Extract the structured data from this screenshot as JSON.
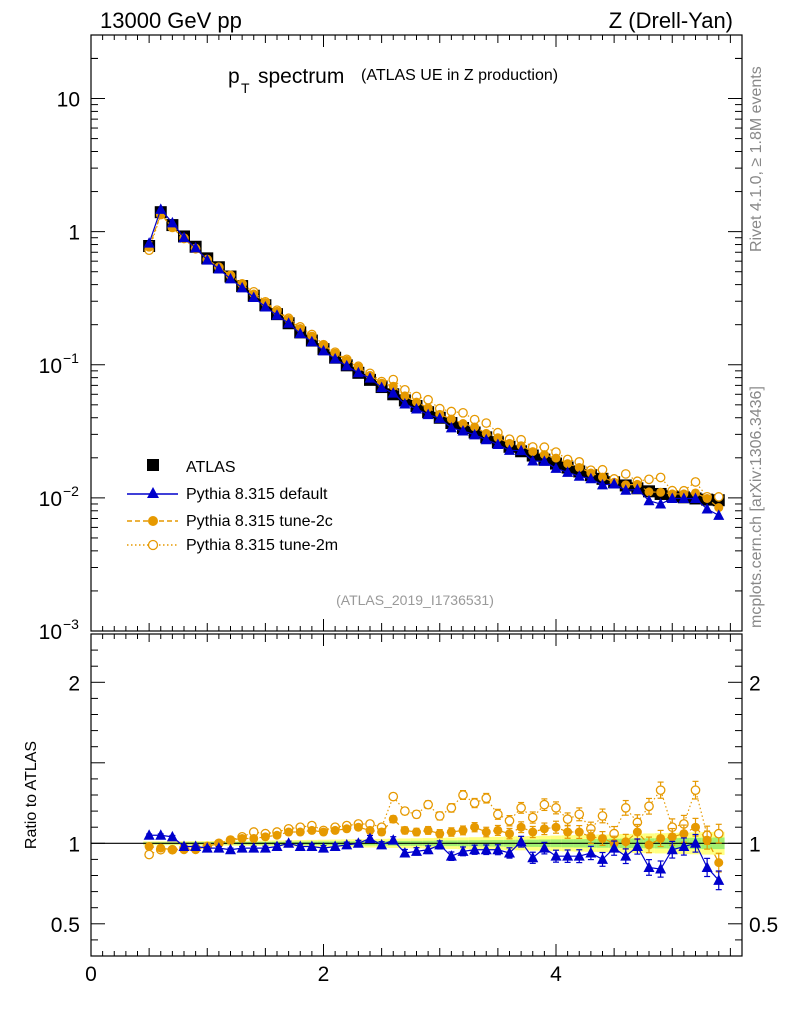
{
  "header": {
    "left": "13000 GeV pp",
    "right": "Z (Drell-Yan)"
  },
  "side_text": {
    "rivet": "Rivet 4.1.0, ≥ 1.8M events",
    "mcplots": "mcplots.cern.ch [arXiv:1306.3436]"
  },
  "chart_data": {
    "type": "scatter",
    "title_main": "p",
    "title_sub": "T",
    "title_word": "spectrum",
    "title_paren": "(ATLAS UE in Z production)",
    "analysis_id": "(ATLAS_2019_I1736531)",
    "xlim": [
      0,
      5.6
    ],
    "ylim": [
      0.001,
      30
    ],
    "yscale": "log",
    "ratio_ylabel": "Ratio to ATLAS",
    "ratio_ylim": [
      0.3,
      2.3
    ],
    "x_ticks": [
      "0",
      "2",
      "4"
    ],
    "y_ticks_main": [
      {
        "value": 10,
        "base": "10",
        "exp": ""
      },
      {
        "value": 1,
        "base": "1",
        "exp": ""
      },
      {
        "value": 0.1,
        "base": "10",
        "exp": "−1"
      },
      {
        "value": 0.01,
        "base": "10",
        "exp": "−2"
      },
      {
        "value": 0.001,
        "base": "10",
        "exp": "−3"
      }
    ],
    "y_ticks_ratio": [
      {
        "value": 2,
        "label": "2"
      },
      {
        "value": 1,
        "label": "1"
      },
      {
        "value": 0.5,
        "label": "0.5"
      }
    ],
    "legend": [
      {
        "name": "ATLAS",
        "color": "#000000",
        "marker": "square"
      },
      {
        "name": "Pythia 8.315 default",
        "color": "#0000cc",
        "marker": "triangle"
      },
      {
        "name": "Pythia 8.315 tune-2c",
        "color": "#e69900",
        "marker": "circle"
      },
      {
        "name": "Pythia 8.315 tune-2m",
        "color": "#e69900",
        "marker": "open-circle"
      }
    ],
    "x": [
      0.5,
      0.6,
      0.7,
      0.8,
      0.9,
      1.0,
      1.1,
      1.2,
      1.3,
      1.4,
      1.5,
      1.6,
      1.7,
      1.8,
      1.9,
      2.0,
      2.1,
      2.2,
      2.3,
      2.4,
      2.5,
      2.6,
      2.7,
      2.8,
      2.9,
      3.0,
      3.1,
      3.2,
      3.3,
      3.4,
      3.5,
      3.6,
      3.7,
      3.8,
      3.9,
      4.0,
      4.1,
      4.2,
      4.3,
      4.4,
      4.5,
      4.6,
      4.7,
      4.8,
      4.9,
      5.0,
      5.1,
      5.2,
      5.3,
      5.4
    ],
    "atlas": [
      0.78,
      1.4,
      1.12,
      0.92,
      0.77,
      0.63,
      0.54,
      0.46,
      0.39,
      0.33,
      0.28,
      0.24,
      0.205,
      0.175,
      0.152,
      0.131,
      0.113,
      0.099,
      0.087,
      0.077,
      0.068,
      0.06,
      0.054,
      0.049,
      0.044,
      0.04,
      0.0365,
      0.0335,
      0.031,
      0.0285,
      0.0262,
      0.0242,
      0.0224,
      0.0208,
      0.0194,
      0.0181,
      0.0169,
      0.0158,
      0.0148,
      0.0139,
      0.0131,
      0.0124,
      0.0118,
      0.0112,
      0.0107,
      0.0103,
      0.0101,
      0.0099,
      0.0097,
      0.0096
    ],
    "ratio_default": [
      1.05,
      1.05,
      1.04,
      0.98,
      0.98,
      0.97,
      0.97,
      0.96,
      0.97,
      0.97,
      0.97,
      0.98,
      1.0,
      0.98,
      0.98,
      0.97,
      0.98,
      0.99,
      1.0,
      1.03,
      0.99,
      1.02,
      0.94,
      0.95,
      0.96,
      0.99,
      0.92,
      0.95,
      0.96,
      0.96,
      0.96,
      0.94,
      1.01,
      0.91,
      0.97,
      0.92,
      0.92,
      0.92,
      0.94,
      0.9,
      0.97,
      0.92,
      0.98,
      0.85,
      0.84,
      0.96,
      0.98,
      1.0,
      0.85,
      0.77
    ],
    "ratio_tune2c": [
      0.98,
      0.97,
      0.96,
      0.96,
      0.96,
      0.98,
      1.0,
      1.02,
      1.03,
      1.03,
      1.04,
      1.05,
      1.07,
      1.07,
      1.08,
      1.07,
      1.08,
      1.09,
      1.1,
      1.08,
      1.07,
      1.15,
      1.08,
      1.07,
      1.08,
      1.06,
      1.07,
      1.08,
      1.1,
      1.07,
      1.08,
      1.06,
      1.1,
      1.07,
      1.09,
      1.1,
      1.07,
      1.07,
      1.04,
      1.03,
      1.0,
      1.01,
      1.07,
      0.99,
      1.03,
      1.04,
      1.06,
      1.1,
      1.02,
      0.88
    ],
    "ratio_tune2m": [
      0.93,
      0.96,
      0.96,
      0.97,
      0.97,
      0.98,
      1.0,
      1.02,
      1.04,
      1.07,
      1.06,
      1.07,
      1.09,
      1.1,
      1.11,
      1.08,
      1.1,
      1.11,
      1.12,
      1.12,
      1.1,
      1.29,
      1.2,
      1.18,
      1.24,
      1.17,
      1.22,
      1.3,
      1.25,
      1.28,
      1.18,
      1.14,
      1.22,
      1.16,
      1.24,
      1.22,
      1.15,
      1.18,
      1.09,
      1.17,
      1.06,
      1.22,
      1.13,
      1.23,
      1.33,
      1.1,
      1.12,
      1.33,
      1.05,
      1.06
    ]
  }
}
